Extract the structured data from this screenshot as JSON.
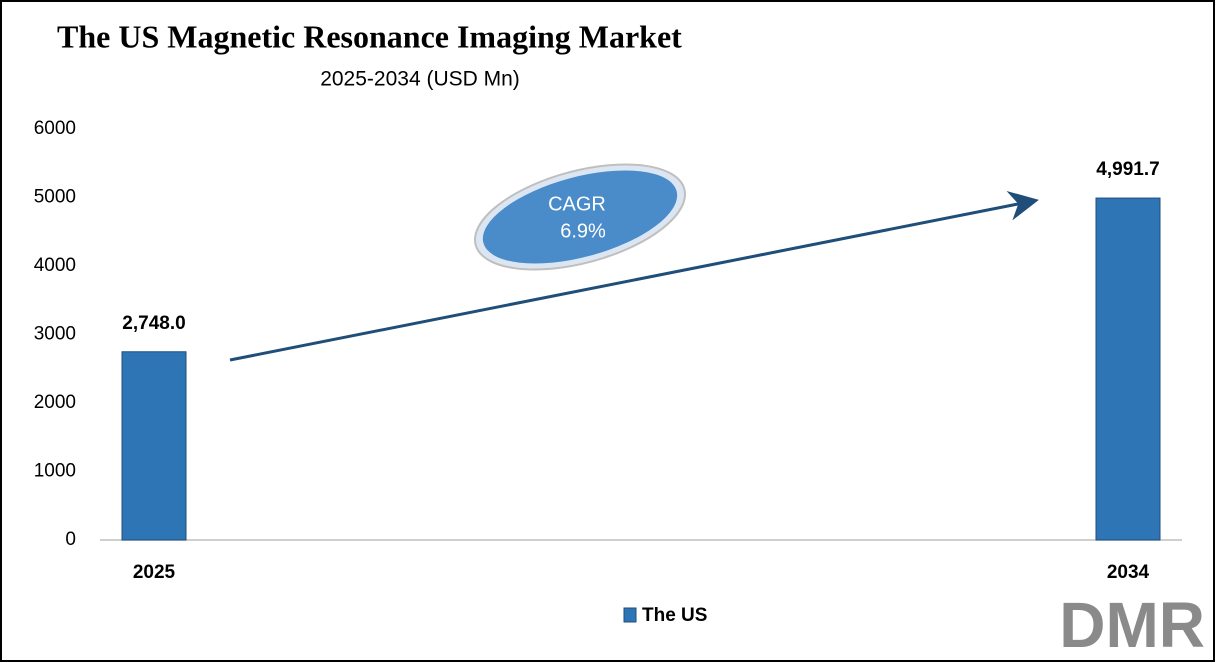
{
  "chart_data": {
    "type": "bar",
    "title": "The US Magnetic Resonance Imaging Market",
    "subtitle": "2025-2034 (USD Mn)",
    "categories": [
      "2025",
      "2034"
    ],
    "series": [
      {
        "name": "The US",
        "color": "#2e75b6",
        "values": [
          2748.0,
          4991.7
        ],
        "value_labels": [
          "2,748.0",
          "4,991.7"
        ]
      }
    ],
    "ylim": [
      0,
      6000
    ],
    "yticks": [
      0,
      1000,
      2000,
      3000,
      4000,
      5000,
      6000
    ],
    "annotation": {
      "label": "CAGR",
      "value": "6.9%"
    },
    "legend": "bottom"
  },
  "logo": "DMR"
}
